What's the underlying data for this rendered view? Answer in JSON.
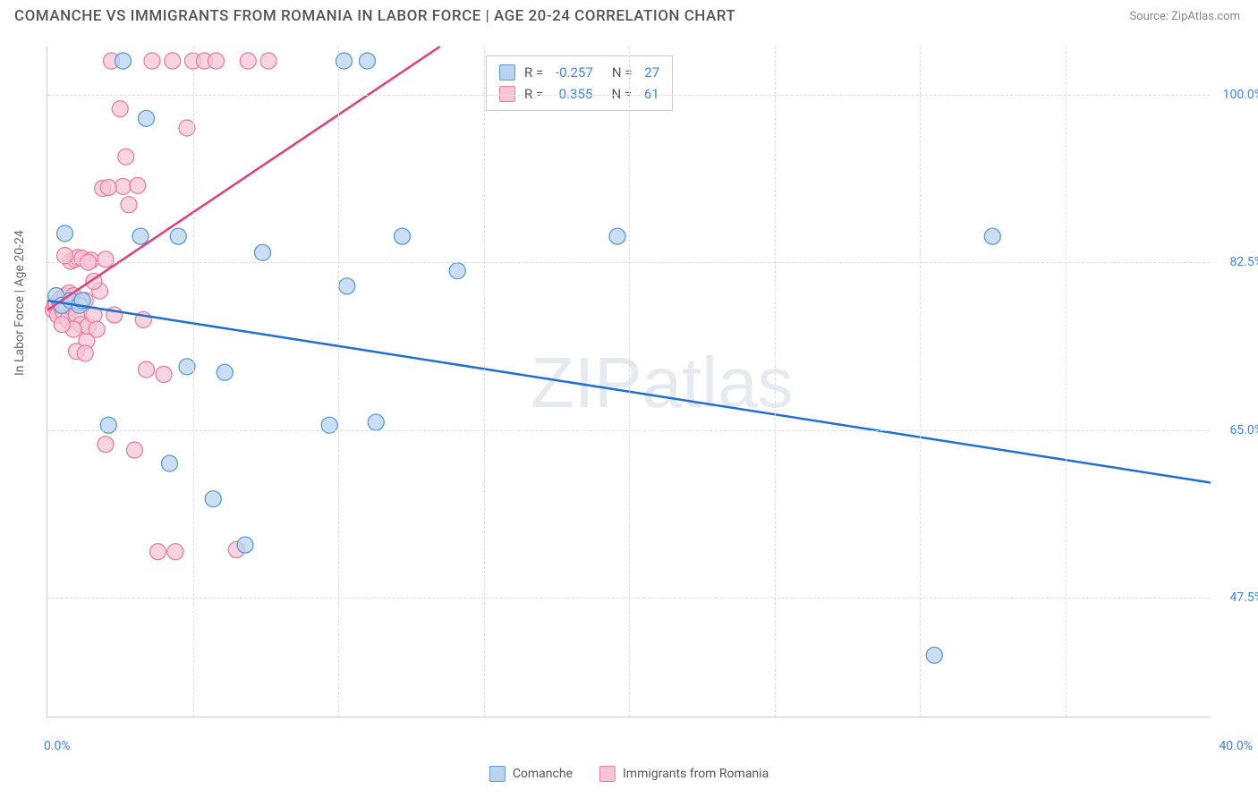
{
  "title": "COMANCHE VS IMMIGRANTS FROM ROMANIA IN LABOR FORCE | AGE 20-24 CORRELATION CHART",
  "source": "Source: ZipAtlas.com",
  "y_axis_label": "In Labor Force | Age 20-24",
  "watermark": "ZIPatlas",
  "chart": {
    "type": "scatter",
    "xlim": [
      0,
      40
    ],
    "ylim": [
      35,
      105
    ],
    "x_ticks": [
      0,
      40
    ],
    "x_tick_labels": [
      "0.0%",
      "40.0%"
    ],
    "y_ticks": [
      47.5,
      65.0,
      82.5,
      100.0
    ],
    "y_tick_labels": [
      "47.5%",
      "65.0%",
      "82.5%",
      "100.0%"
    ],
    "x_gridlines": [
      5,
      10,
      15,
      20,
      25,
      30,
      35
    ],
    "grid_color": "#dddddd",
    "background_color": "#ffffff"
  },
  "series": {
    "comanche": {
      "label": "Comanche",
      "color_fill": "#b9d4f0",
      "color_stroke": "#5a9bd5",
      "line_color": "#1f6fd4",
      "marker_radius": 9,
      "marker_opacity": 0.75,
      "R": "-0.257",
      "N": "27",
      "trend": {
        "x1": 0,
        "y1": 78.5,
        "x2": 40,
        "y2": 59.5
      },
      "points": [
        [
          0.3,
          79
        ],
        [
          0.5,
          78
        ],
        [
          0.6,
          85.5
        ],
        [
          0.8,
          78.5
        ],
        [
          1.1,
          78
        ],
        [
          1.2,
          78.5
        ],
        [
          2.1,
          65.5
        ],
        [
          2.6,
          103.5
        ],
        [
          3.2,
          85.2
        ],
        [
          3.4,
          97.5
        ],
        [
          4.2,
          61.5
        ],
        [
          4.5,
          85.2
        ],
        [
          4.8,
          71.6
        ],
        [
          5.7,
          57.8
        ],
        [
          6.1,
          71.0
        ],
        [
          6.8,
          53.0
        ],
        [
          7.4,
          83.5
        ],
        [
          9.7,
          65.5
        ],
        [
          10.2,
          103.5
        ],
        [
          10.3,
          80.0
        ],
        [
          11.0,
          103.5
        ],
        [
          11.3,
          65.8
        ],
        [
          12.2,
          85.2
        ],
        [
          14.1,
          81.6
        ],
        [
          19.6,
          85.2
        ],
        [
          30.5,
          41.5
        ],
        [
          32.5,
          85.2
        ]
      ]
    },
    "romania": {
      "label": "Immigrants from Romania",
      "color_fill": "#f6c6d6",
      "color_stroke": "#e77fa3",
      "line_color": "#e23d7a",
      "marker_radius": 9,
      "marker_opacity": 0.75,
      "R": "0.355",
      "N": "61",
      "trend": {
        "x1": 0,
        "y1": 77.5,
        "x2": 13.5,
        "y2": 105
      },
      "points": [
        [
          0.2,
          77.5
        ],
        [
          0.25,
          78
        ],
        [
          0.3,
          78.2
        ],
        [
          0.35,
          77
        ],
        [
          0.4,
          78.5
        ],
        [
          0.45,
          78
        ],
        [
          0.5,
          78.8
        ],
        [
          0.55,
          77.3
        ],
        [
          0.6,
          79
        ],
        [
          0.65,
          78
        ],
        [
          0.7,
          76.5
        ],
        [
          0.75,
          79.3
        ],
        [
          0.8,
          82.6
        ],
        [
          0.85,
          77.8
        ],
        [
          0.9,
          79
        ],
        [
          0.95,
          82.8
        ],
        [
          1.0,
          77
        ],
        [
          1.05,
          83
        ],
        [
          1.1,
          78.3
        ],
        [
          1.15,
          76
        ],
        [
          1.2,
          82.9
        ],
        [
          1.3,
          78.5
        ],
        [
          1.35,
          74.3
        ],
        [
          1.4,
          75.8
        ],
        [
          1.5,
          82.7
        ],
        [
          1.6,
          77
        ],
        [
          1.7,
          75.5
        ],
        [
          1.8,
          79.5
        ],
        [
          1.9,
          90.2
        ],
        [
          2.0,
          63.5
        ],
        [
          2.2,
          103.5
        ],
        [
          2.3,
          77
        ],
        [
          2.5,
          98.5
        ],
        [
          2.6,
          90.4
        ],
        [
          2.7,
          93.5
        ],
        [
          2.8,
          88.5
        ],
        [
          3.0,
          62.9
        ],
        [
          3.1,
          90.5
        ],
        [
          3.3,
          76.5
        ],
        [
          3.4,
          71.3
        ],
        [
          3.6,
          103.5
        ],
        [
          3.8,
          52.3
        ],
        [
          4.0,
          70.8
        ],
        [
          4.3,
          103.5
        ],
        [
          4.4,
          52.3
        ],
        [
          4.8,
          96.5
        ],
        [
          5.0,
          103.5
        ],
        [
          5.4,
          103.5
        ],
        [
          5.8,
          103.5
        ],
        [
          6.5,
          52.5
        ],
        [
          6.9,
          103.5
        ],
        [
          7.6,
          103.5
        ],
        [
          0.6,
          83.2
        ],
        [
          1.0,
          73.2
        ],
        [
          1.3,
          73.0
        ],
        [
          1.6,
          80.5
        ],
        [
          2.0,
          82.8
        ],
        [
          2.1,
          90.3
        ],
        [
          0.9,
          75.5
        ],
        [
          1.4,
          82.5
        ],
        [
          0.5,
          76
        ]
      ]
    }
  },
  "legend": {
    "items": [
      {
        "key": "comanche",
        "label": "Comanche"
      },
      {
        "key": "romania",
        "label": "Immigrants from Romania"
      }
    ]
  }
}
